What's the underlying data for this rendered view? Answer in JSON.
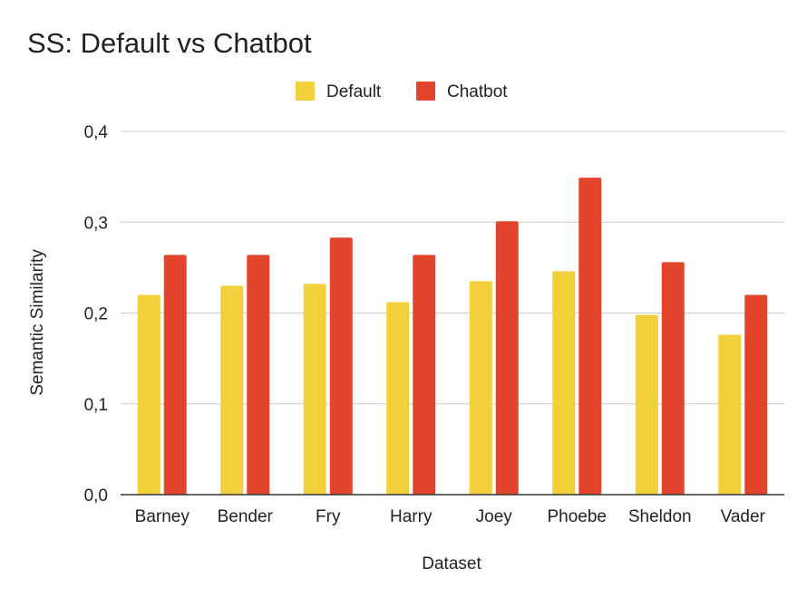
{
  "chart_data": {
    "type": "bar",
    "title": "SS: Default vs Chatbot",
    "xlabel": "Dataset",
    "ylabel": "Semantic Similarity",
    "categories": [
      "Barney",
      "Bender",
      "Fry",
      "Harry",
      "Joey",
      "Phoebe",
      "Sheldon",
      "Vader"
    ],
    "series": [
      {
        "name": "Default",
        "color": "#f1d03b",
        "values": [
          0.22,
          0.23,
          0.232,
          0.212,
          0.235,
          0.246,
          0.198,
          0.176
        ]
      },
      {
        "name": "Chatbot",
        "color": "#e3452c",
        "values": [
          0.264,
          0.264,
          0.283,
          0.264,
          0.301,
          0.349,
          0.256,
          0.22
        ]
      }
    ],
    "ylim": [
      0,
      0.4
    ],
    "yticks": [
      "0,0",
      "0,1",
      "0,2",
      "0,3",
      "0,4"
    ],
    "grid": true,
    "legend_position": "top"
  }
}
